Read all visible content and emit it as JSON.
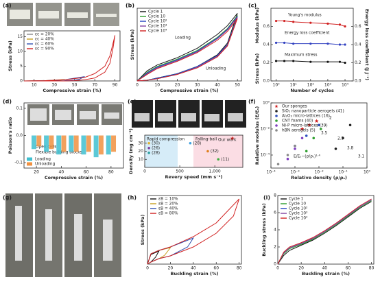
{
  "photo_panels": [
    "(g)"
  ],
  "chart_data": [
    {
      "type": "line",
      "panel": "(a)",
      "xlabel": "Compressive strain (%)",
      "ylabel": "Stress (kPa)",
      "xlim": [
        0,
        95
      ],
      "ylim": [
        0,
        17
      ],
      "xticks": [
        10,
        30,
        50,
        70,
        90
      ],
      "yticks": [
        0,
        5,
        10,
        15
      ],
      "legend": "top-left",
      "series": [
        {
          "name": "εc = 20%",
          "color": "#888888",
          "x": [
            0,
            10,
            20,
            15,
            10,
            0
          ],
          "values": [
            0,
            0.05,
            0.15,
            0.05,
            0,
            0
          ]
        },
        {
          "name": "εc = 40%",
          "color": "#c8a020",
          "x": [
            0,
            20,
            40,
            35,
            30,
            20,
            0
          ],
          "values": [
            0,
            0.1,
            0.5,
            0.15,
            0.05,
            0,
            0
          ]
        },
        {
          "name": "εc = 60%",
          "color": "#3050b0",
          "x": [
            0,
            20,
            40,
            60,
            55,
            50,
            40,
            20,
            0
          ],
          "values": [
            0,
            0.1,
            0.4,
            1.5,
            0.6,
            0.3,
            0.1,
            0,
            0
          ]
        },
        {
          "name": "εc = 90%",
          "color": "#d02020",
          "x": [
            0,
            20,
            40,
            60,
            70,
            80,
            85,
            90,
            88,
            85,
            80,
            70,
            60,
            50,
            40,
            20,
            0
          ],
          "values": [
            0,
            0.1,
            0.4,
            1.2,
            2.5,
            5,
            8.5,
            15.5,
            11,
            6,
            3,
            1,
            0.4,
            0.1,
            0,
            0,
            0
          ]
        }
      ]
    },
    {
      "type": "line",
      "panel": "(b)",
      "xlabel": "Compressive strain (%)",
      "ylabel": "Stress (kPa)",
      "xlim": [
        0,
        52
      ],
      "ylim": [
        0,
        1
      ],
      "xticks": [
        0,
        10,
        20,
        30,
        40,
        50
      ],
      "legend": "top-left",
      "annotations": [
        "Loading",
        "Unloading"
      ],
      "series": [
        {
          "name": "Cycle 1",
          "color": "#111111",
          "x": [
            0,
            5,
            10,
            20,
            30,
            40,
            45,
            50,
            45,
            40,
            30,
            20,
            10,
            5,
            0
          ],
          "values": [
            0,
            0.14,
            0.22,
            0.32,
            0.45,
            0.64,
            0.76,
            0.93,
            0.52,
            0.36,
            0.2,
            0.1,
            0.04,
            0.01,
            0
          ]
        },
        {
          "name": "Cycle 10",
          "color": "#2a9d2a",
          "x": [
            0,
            5,
            10,
            20,
            30,
            40,
            45,
            50,
            45,
            40,
            30,
            20,
            10,
            5,
            0
          ],
          "values": [
            0,
            0.12,
            0.2,
            0.3,
            0.42,
            0.6,
            0.72,
            0.9,
            0.5,
            0.35,
            0.2,
            0.1,
            0.04,
            0.01,
            0
          ]
        },
        {
          "name": "Cycle 10²",
          "color": "#2040c0",
          "x": [
            0,
            5,
            10,
            20,
            30,
            40,
            45,
            50,
            45,
            40,
            30,
            20,
            10,
            5,
            0
          ],
          "values": [
            0,
            0.11,
            0.19,
            0.29,
            0.41,
            0.59,
            0.71,
            0.89,
            0.5,
            0.35,
            0.2,
            0.1,
            0.04,
            0.01,
            0
          ]
        },
        {
          "name": "Cycle 10³",
          "color": "#8040a0",
          "x": [
            0,
            5,
            10,
            20,
            30,
            40,
            45,
            50,
            45,
            40,
            30,
            20,
            10,
            5,
            0
          ],
          "values": [
            0,
            0.1,
            0.18,
            0.28,
            0.4,
            0.58,
            0.7,
            0.88,
            0.49,
            0.34,
            0.19,
            0.09,
            0.03,
            0.01,
            0
          ]
        },
        {
          "name": "Cycle 10⁴",
          "color": "#d02020",
          "x": [
            0,
            5,
            10,
            20,
            30,
            40,
            45,
            50,
            45,
            40,
            30,
            20,
            10,
            5,
            0
          ],
          "values": [
            0,
            0.09,
            0.17,
            0.27,
            0.39,
            0.56,
            0.68,
            0.86,
            0.48,
            0.33,
            0.18,
            0.09,
            0.03,
            0.01,
            0
          ]
        }
      ]
    },
    {
      "type": "line",
      "panel": "(c)",
      "xlabel": "Number of cycles",
      "ylabel": "Modulus (kPa)",
      "ylabel_lower": "Stress (kPa)",
      "ylabel_color": "#d02020",
      "y2label": "Energy loss coefficient (J J⁻¹)",
      "y2label_color": "#3040c0",
      "xlog": true,
      "xlim": [
        0.5,
        30000
      ],
      "xticks": [
        {
          "value": 1,
          "label": "10⁰"
        },
        {
          "value": 10,
          "label": "10¹"
        },
        {
          "value": 100,
          "label": "10²"
        },
        {
          "value": 1000,
          "label": "10³"
        },
        {
          "value": 10000,
          "label": "10⁴"
        }
      ],
      "ylim": [
        0,
        0.8
      ],
      "yticks": [
        {
          "value": 0,
          "label": "0.0"
        },
        0.2,
        0.4,
        0.6
      ],
      "y2lim": [
        0,
        0.8
      ],
      "y2ticks": [
        {
          "value": 0,
          "label": "0.0"
        },
        0.2,
        0.4,
        0.6
      ],
      "legend": "inline",
      "series": [
        {
          "name": "Young's modulus",
          "color": "#d02020",
          "x": [
            1,
            3,
            10,
            100,
            1000,
            5000,
            10000
          ],
          "values": [
            0.66,
            0.66,
            0.65,
            0.64,
            0.63,
            0.62,
            0.6
          ]
        },
        {
          "name": "Energy loss coefficient",
          "color": "#3040c0",
          "axis": "y2",
          "x": [
            1,
            3,
            10,
            100,
            1000,
            5000,
            10000
          ],
          "values": [
            0.42,
            0.42,
            0.41,
            0.41,
            0.41,
            0.4,
            0.4
          ]
        },
        {
          "name": "Maximum stress",
          "color": "#111111",
          "x": [
            1,
            3,
            10,
            100,
            1000,
            5000,
            10000
          ],
          "values": [
            0.22,
            0.22,
            0.22,
            0.21,
            0.21,
            0.21,
            0.2
          ]
        }
      ]
    },
    {
      "type": "bar",
      "panel": "(d)",
      "xlabel": "Compressive strain (%)",
      "ylabel": "Poisson's ratio",
      "xlim": [
        10,
        90
      ],
      "ylim": [
        -0.12,
        0.12
      ],
      "xticks": [
        20,
        40,
        60,
        80
      ],
      "yticks": [
        -0.1,
        {
          "value": 0,
          "label": "0.0"
        },
        0.1
      ],
      "legend": "bottom-left",
      "annotations": [
        "Open cells",
        "Flexible building blocks"
      ],
      "x": [
        20,
        30,
        40,
        50,
        60,
        70,
        80
      ],
      "series": [
        {
          "name": "Loading",
          "color": "#40c0d0",
          "values": [
            -0.05,
            -0.06,
            -0.07,
            -0.06,
            -0.07,
            -0.08,
            -0.07
          ]
        },
        {
          "name": "Unloading",
          "color": "#f09040",
          "values": [
            -0.04,
            -0.05,
            -0.06,
            -0.06,
            -0.06,
            -0.07,
            -0.06
          ]
        }
      ]
    },
    {
      "type": "scatter",
      "panel": "(e)",
      "xlabel": "Revery speed (mm s⁻¹)",
      "ylabel": "Density (mg cm⁻³)",
      "xlim": [
        0,
        1400
      ],
      "ylim": [
        0,
        40
      ],
      "xticks": [
        0,
        500,
        {
          "value": 1000,
          "label": "1,000"
        }
      ],
      "yticks": [
        10,
        20,
        30
      ],
      "legend": "inline",
      "times": [
        "0 ms",
        "7.2",
        "14.5",
        "16.6",
        "20.2"
      ],
      "series": [
        {
          "name": "Rapid compression",
          "color": "#3090c0",
          "x": [
            60,
            60,
            60
          ],
          "values": [
            30,
            24,
            18
          ],
          "colors": [
            "#e0b030",
            "#8040a0",
            "#30a0a0"
          ],
          "point_labels": [
            "(30)",
            "(26)",
            "(28)"
          ]
        },
        {
          "name": "Falling-ball",
          "color": "#e04060",
          "x": [
            650,
            900,
            1050
          ],
          "values": [
            30,
            20,
            10
          ],
          "colors": [
            "#40a0e0",
            "#e08020",
            "#40b040"
          ],
          "point_labels": [
            "(28)",
            "(32)",
            "(11)"
          ]
        },
        {
          "name": "Our work",
          "color": "#d02020",
          "marker": "star",
          "x": [
            1250
          ],
          "values": [
            36
          ]
        }
      ]
    },
    {
      "type": "scatter",
      "panel": "(f)",
      "xlabel": "Relative density (ρ/ρₛ)",
      "ylabel": "Relative modulus (E/Eₛ)",
      "xlog": true,
      "ylog": true,
      "xlim": [
        0.0001,
        1
      ],
      "ylim": [
        1e-05,
        1
      ],
      "xticks": [
        {
          "value": 0.0001,
          "label": "10⁻⁴"
        },
        {
          "value": 0.001,
          "label": "10⁻³"
        },
        {
          "value": 0.01,
          "label": "10⁻²"
        },
        {
          "value": 0.1,
          "label": "10⁻¹"
        },
        {
          "value": 1,
          "label": "10⁰"
        }
      ],
      "yticks": [
        {
          "value": 0.0001,
          "label": "10⁻⁴"
        },
        {
          "value": 0.01,
          "label": "10⁻²"
        },
        {
          "value": 1,
          "label": "10⁰"
        }
      ],
      "legend": "top-left",
      "annotations": [
        "E/Eₛ~(ρ/ρₛ)¹·⁴",
        "2",
        "3.5",
        "2.5",
        "3.8",
        "3.1"
      ],
      "series": [
        {
          "name": "Our sponges",
          "color": "#d02020",
          "marker": "star",
          "x": [
            0.002,
            0.004,
            0.008
          ],
          "values": [
            0.01,
            0.02,
            0.04
          ]
        },
        {
          "name": "SiO₂ nanoparticle aerogels (41)",
          "color": "#222222",
          "x": [
            0.05,
            0.1,
            0.2
          ],
          "values": [
            0.0003,
            0.002,
            0.02
          ]
        },
        {
          "name": "Al₂O₃ micro-lattices (16)",
          "color": "#3050c0",
          "x": [
            0.001,
            0.003,
            0.01
          ],
          "values": [
            0.0005,
            0.003,
            0.02
          ]
        },
        {
          "name": "CNT foams (40)",
          "color": "#30a030",
          "x": [
            0.003,
            0.006,
            0.012
          ],
          "values": [
            0.0002,
            0.002,
            0.01
          ]
        },
        {
          "name": "Ni-P micro-lattices (39)",
          "color": "#8040c0",
          "x": [
            0.0005,
            0.001,
            0.002
          ],
          "values": [
            5e-05,
            0.0003,
            0.002
          ]
        },
        {
          "name": "hBN aerogels (5)",
          "color": "#888888",
          "x": [
            0.0002,
            0.0005,
            0.001
          ],
          "values": [
            2e-05,
            0.0001,
            0.0005
          ]
        }
      ]
    },
    {
      "type": "line",
      "panel": "(h)",
      "xlabel": "Buckling strain (%)",
      "ylabel": "Stress (kPa)",
      "xlim": [
        0,
        82
      ],
      "ylim": [
        0,
        10
      ],
      "xticks": [
        0,
        20,
        40,
        60,
        80
      ],
      "legend": "top-left",
      "series": [
        {
          "name": "εB = 10%",
          "color": "#111111",
          "x": [
            0,
            3,
            10,
            7,
            3,
            0
          ],
          "values": [
            0,
            1.4,
            1.9,
            1,
            0.3,
            0
          ]
        },
        {
          "name": "εB = 20%",
          "color": "#c8a020",
          "x": [
            0,
            3,
            10,
            20,
            15,
            10,
            3,
            0
          ],
          "values": [
            0,
            1.5,
            2,
            2.4,
            1.3,
            0.8,
            0.3,
            0
          ]
        },
        {
          "name": "εB = 40%",
          "color": "#3050b0",
          "x": [
            0,
            3,
            10,
            20,
            40,
            35,
            20,
            10,
            3,
            0
          ],
          "values": [
            0,
            1.5,
            2,
            2.5,
            3.8,
            2.5,
            1.2,
            0.8,
            0.3,
            0
          ]
        },
        {
          "name": "εB = 80%",
          "color": "#d02020",
          "x": [
            0,
            3,
            10,
            20,
            40,
            60,
            80,
            75,
            60,
            40,
            20,
            10,
            3,
            0
          ],
          "values": [
            0,
            1.5,
            2,
            2.5,
            4,
            6,
            9.5,
            7,
            4.5,
            2.5,
            1.2,
            0.8,
            0.3,
            0
          ]
        }
      ]
    },
    {
      "type": "line",
      "panel": "(i)",
      "xlabel": "Buckling strain (%)",
      "ylabel": "Buckling stress (kPa)",
      "xlim": [
        0,
        82
      ],
      "ylim": [
        0,
        8
      ],
      "xticks": [
        0,
        20,
        40,
        60,
        80
      ],
      "yticks": [
        0,
        2,
        4,
        6,
        8
      ],
      "legend": "top-left",
      "series": [
        {
          "name": "Cycle 1",
          "color": "#111111",
          "x": [
            0,
            5,
            10,
            20,
            30,
            40,
            50,
            60,
            70,
            80
          ],
          "values": [
            0,
            1.0,
            1.6,
            2.2,
            2.8,
            3.6,
            4.5,
            5.5,
            6.5,
            7.3
          ]
        },
        {
          "name": "Cycle 10",
          "color": "#2a9d2a",
          "x": [
            0,
            5,
            10,
            20,
            30,
            40,
            50,
            60,
            70,
            80
          ],
          "values": [
            0,
            1.2,
            1.8,
            2.3,
            2.9,
            3.7,
            4.6,
            5.6,
            6.6,
            7.4
          ]
        },
        {
          "name": "Cycle 10²",
          "color": "#2040c0",
          "x": [
            0,
            5,
            10,
            20,
            30,
            40,
            50,
            60,
            70,
            80
          ],
          "values": [
            0,
            1.3,
            1.9,
            2.4,
            3.0,
            3.8,
            4.7,
            5.7,
            6.7,
            7.5
          ]
        },
        {
          "name": "Cycle 10³",
          "color": "#8040a0",
          "x": [
            0,
            5,
            10,
            20,
            30,
            40,
            50,
            60,
            70,
            80
          ],
          "values": [
            0,
            1.3,
            1.9,
            2.4,
            3.0,
            3.8,
            4.7,
            5.7,
            6.7,
            7.5
          ]
        },
        {
          "name": "Cycle 10⁴",
          "color": "#d02020",
          "x": [
            0,
            5,
            10,
            20,
            30,
            40,
            50,
            60,
            70,
            80
          ],
          "values": [
            0,
            1.4,
            2.0,
            2.5,
            3.1,
            3.9,
            4.8,
            5.8,
            6.8,
            7.6
          ]
        }
      ]
    }
  ]
}
